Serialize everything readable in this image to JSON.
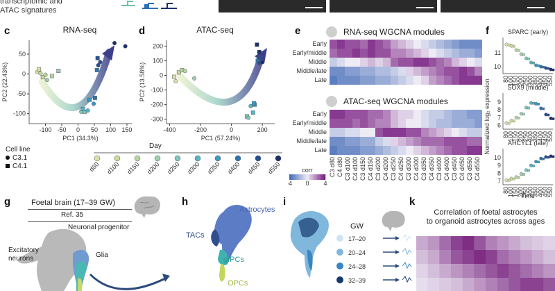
{
  "top": {
    "caption_line": "transcriptomic and",
    "caption_line2": "ATAC signatures"
  },
  "panel_c": {
    "label": "c",
    "title": "RNA-seq",
    "xlabel": "PC1 (34.3%)",
    "ylabel": "PC2 (22.43%)"
  },
  "panel_d": {
    "label": "d",
    "title": "ATAC-seq",
    "xlabel": "PC1 (57.24%)",
    "ylabel": "PC2 (13.58%)"
  },
  "panel_e": {
    "label": "e",
    "title_rna": "RNA-seq WGCNA modules",
    "title_atac": "ATAC-seq WGCNA modules",
    "legend_title": "corr"
  },
  "panel_f": {
    "label": "f",
    "ylabel": "Normalized log₂ expression",
    "xlabel": "Time",
    "sub": [
      "SPARC (early)",
      "SOX9 (middle)",
      "AHCYL1 (late)"
    ]
  },
  "legend": {
    "cell_line_title": "Cell line",
    "cell_lines": [
      "C3.1",
      "C4.1"
    ],
    "day_title": "Day",
    "days": [
      "d80",
      "d100",
      "d150",
      "d200",
      "d250",
      "d300",
      "d350",
      "d400",
      "d450",
      "d550"
    ],
    "day_colors": [
      "#d5e3a8",
      "#c7dc9a",
      "#b7d5a0",
      "#9fcfb0",
      "#7fc7bc",
      "#55b5c6",
      "#3a9ac0",
      "#2d75ae",
      "#244f93",
      "#1a2f6c"
    ]
  },
  "panel_g": {
    "label": "g",
    "title": "Foetal brain (17–39 GW)",
    "ref": "Ref. 35",
    "labels": [
      "Neuronal progenitor",
      "Glia",
      "Excitatory neurons"
    ]
  },
  "panel_h": {
    "label": "h",
    "labels": [
      "Astrocytes",
      "TACs",
      "gIPCs",
      "OPCs"
    ]
  },
  "panel_i": {
    "label": "i",
    "gw_title": "GW",
    "gw": [
      "17–20",
      "20–24",
      "24–28",
      "32–39"
    ],
    "gw_colors": [
      "#cfe3f2",
      "#7fb7dd",
      "#3a86c0",
      "#173a6e"
    ]
  },
  "panel_k": {
    "label": "k",
    "title_line1": "Correlation of foetal astrocytes",
    "title_line2": "to organoid astrocytes across ages"
  },
  "chart_data": [
    {
      "type": "scatter",
      "title": "RNA-seq",
      "xlabel": "PC1 (34.3%)",
      "ylabel": "PC2 (22.43%)",
      "xlim": [
        -150,
        165
      ],
      "ylim": [
        -125,
        85
      ],
      "xticks": [
        -100,
        -50,
        0,
        50,
        100,
        150
      ],
      "yticks": [
        -100,
        -50,
        0,
        50
      ],
      "points": [
        {
          "x": -125,
          "y": 5,
          "day": "d80",
          "line": "C3.1"
        },
        {
          "x": -120,
          "y": 12,
          "day": "d80",
          "line": "C4.1"
        },
        {
          "x": -115,
          "y": 2,
          "day": "d100",
          "line": "C3.1"
        },
        {
          "x": -108,
          "y": -8,
          "day": "d100",
          "line": "C4.1"
        },
        {
          "x": -100,
          "y": -2,
          "day": "d150",
          "line": "C3.1"
        },
        {
          "x": -80,
          "y": -5,
          "day": "d150",
          "line": "C4.1"
        },
        {
          "x": -60,
          "y": 8,
          "day": "d200",
          "line": "C4.1"
        },
        {
          "x": -95,
          "y": -15,
          "day": "d200",
          "line": "C3.1"
        },
        {
          "x": 10,
          "y": -95,
          "day": "d250",
          "line": "C3.1"
        },
        {
          "x": 20,
          "y": -95,
          "day": "d250",
          "line": "C4.1"
        },
        {
          "x": 30,
          "y": -92,
          "day": "d300",
          "line": "C3.1"
        },
        {
          "x": 15,
          "y": -88,
          "day": "d300",
          "line": "C4.1"
        },
        {
          "x": 35,
          "y": -65,
          "day": "d350",
          "line": "C4.1"
        },
        {
          "x": 48,
          "y": -75,
          "day": "d350",
          "line": "C3.1"
        },
        {
          "x": 52,
          "y": -60,
          "day": "d400",
          "line": "C4.1"
        },
        {
          "x": 58,
          "y": 10,
          "day": "d400",
          "line": "C4.1"
        },
        {
          "x": 62,
          "y": 22,
          "day": "d450",
          "line": "C3.1"
        },
        {
          "x": 60,
          "y": 40,
          "day": "d450",
          "line": "C4.1"
        },
        {
          "x": 68,
          "y": 30,
          "day": "d450",
          "line": "C3.1"
        },
        {
          "x": 112,
          "y": 78,
          "day": "d550",
          "line": "C3.1"
        },
        {
          "x": 145,
          "y": 70,
          "day": "d550",
          "line": "C3.1"
        }
      ]
    },
    {
      "type": "scatter",
      "title": "ATAC-seq",
      "xlabel": "PC1 (57.24%)",
      "ylabel": "PC2 (13.58%)",
      "xlim": [
        -420,
        280
      ],
      "ylim": [
        -330,
        240
      ],
      "xticks": [
        -400,
        -200,
        0,
        200
      ],
      "yticks": [
        -300,
        -200,
        -100,
        0,
        100,
        200
      ],
      "points": [
        {
          "x": -370,
          "y": -10,
          "day": "d80",
          "line": "C4.1"
        },
        {
          "x": -360,
          "y": -40,
          "day": "d80",
          "line": "C3.1"
        },
        {
          "x": -340,
          "y": 20,
          "day": "d100",
          "line": "C4.1"
        },
        {
          "x": -320,
          "y": 35,
          "day": "d150",
          "line": "C4.1"
        },
        {
          "x": -300,
          "y": 30,
          "day": "d150",
          "line": "C3.1"
        },
        {
          "x": -240,
          "y": -20,
          "day": "d200",
          "line": "C3.1"
        },
        {
          "x": 100,
          "y": -280,
          "day": "d250",
          "line": "C4.1"
        },
        {
          "x": 110,
          "y": -290,
          "day": "d250",
          "line": "C3.1"
        },
        {
          "x": 140,
          "y": -255,
          "day": "d300",
          "line": "C4.1"
        },
        {
          "x": 125,
          "y": -210,
          "day": "d300",
          "line": "C3.1"
        },
        {
          "x": 150,
          "y": -200,
          "day": "d350",
          "line": "C4.1"
        },
        {
          "x": 145,
          "y": -190,
          "day": "d350",
          "line": "C4.1"
        },
        {
          "x": 170,
          "y": 100,
          "day": "d400",
          "line": "C4.1"
        },
        {
          "x": 180,
          "y": 85,
          "day": "d450",
          "line": "C3.1"
        },
        {
          "x": 185,
          "y": 120,
          "day": "d450",
          "line": "C4.1"
        },
        {
          "x": 165,
          "y": 210,
          "day": "d550",
          "line": "C4.1"
        },
        {
          "x": 180,
          "y": 160,
          "day": "d550",
          "line": "C4.1"
        },
        {
          "x": 200,
          "y": 90,
          "day": "d550",
          "line": "C3.1"
        }
      ]
    },
    {
      "type": "heatmap",
      "title": "RNA-seq WGCNA modules",
      "rows": [
        "Early",
        "Early/middle",
        "Middle",
        "Middle/late",
        "Late"
      ],
      "values": [
        [
          3,
          3.5,
          3,
          3,
          2.5,
          3.5,
          3,
          2.5,
          1.5,
          1,
          0.5,
          0,
          -0.5,
          -1,
          -1.5,
          -2,
          -2.5,
          -3,
          -3,
          -3
        ],
        [
          2.5,
          3,
          3,
          3.5,
          3,
          3.5,
          3,
          3,
          2,
          2,
          1.5,
          1,
          0.5,
          0,
          -0.5,
          -1,
          -1.5,
          -2,
          -2,
          -2.5
        ],
        [
          -1,
          -0.5,
          0,
          0,
          0.5,
          1,
          0.5,
          1,
          2.5,
          3,
          3,
          3.5,
          3.5,
          3,
          2.5,
          2,
          1,
          0.5,
          0,
          -0.5
        ],
        [
          -3,
          -3,
          -2.5,
          -2.5,
          -2,
          -2,
          -1.5,
          -1.5,
          -1,
          -0.5,
          0.5,
          1,
          1.5,
          2,
          2.5,
          3,
          3,
          3.5,
          3,
          2
        ],
        [
          -3.5,
          -3,
          -3,
          -3,
          -2.5,
          -2.5,
          -2,
          -2,
          -1.5,
          -1,
          -0.5,
          0,
          0.5,
          1.5,
          2,
          2.5,
          3,
          3.5,
          3.5,
          3.5
        ]
      ]
    },
    {
      "type": "heatmap",
      "title": "ATAC-seq WGCNA modules",
      "rows": [
        "Early",
        "Early/middle",
        "Middle",
        "Middle/late",
        "Late"
      ],
      "columns": [
        "C3 d80",
        "C4 d80",
        "C3 d100",
        "C4 d100",
        "C3 d150",
        "C4 d150",
        "C3 d200",
        "C4 d200",
        "C3 d250",
        "C4 d250",
        "C3 d300",
        "C4 d300",
        "C3 d350",
        "C4 d350",
        "C3 d400",
        "C4 d400",
        "C3 d450",
        "C4 d450",
        "C3 d550",
        "C4 d550"
      ],
      "values": [
        [
          3.5,
          3.5,
          3,
          3,
          3,
          2.5,
          2.5,
          2,
          1,
          0.5,
          0.5,
          0,
          -0.5,
          -1,
          -1,
          -1.5,
          -2,
          -2,
          -2.5,
          -2.5
        ],
        [
          3,
          3,
          3,
          2.5,
          3,
          2.5,
          2,
          2,
          1,
          0.5,
          0,
          0,
          -0.5,
          -1,
          -1.5,
          -1.5,
          -2,
          -2,
          -2,
          -2.5
        ],
        [
          -1,
          -1,
          -0.5,
          -0.5,
          0,
          0,
          3,
          3.5,
          3.5,
          3.5,
          3,
          3,
          2,
          1.5,
          1,
          0.5,
          0,
          -0.5,
          -1,
          -1
        ],
        [
          -3,
          -3,
          -2.5,
          -2.5,
          -2,
          -2,
          -1,
          -0.5,
          0.5,
          1,
          1.5,
          2,
          2.5,
          2.5,
          2.5,
          3,
          3,
          3,
          2.5,
          2.5
        ],
        [
          -3.5,
          -3,
          -3,
          -3,
          -2.5,
          -2.5,
          -2,
          -1.5,
          -1,
          -0.5,
          0,
          0.5,
          1,
          1.5,
          2,
          2.5,
          3,
          3,
          3.5,
          3.5
        ]
      ],
      "legend_ticks": [
        -4,
        0,
        4
      ],
      "legend_title": "corr"
    },
    {
      "type": "scatter",
      "title": "SPARC (early)",
      "yticks": [
        10,
        11
      ],
      "x_categories": [
        "80",
        "100",
        "150",
        "200",
        "250",
        "300",
        "350",
        "400",
        "450",
        "550"
      ],
      "values": [
        11.6,
        11.5,
        11.2,
        10.9,
        10.6,
        10.3,
        10.1,
        10.0,
        9.9,
        9.8
      ]
    },
    {
      "type": "scatter",
      "title": "SOX9 (middle)",
      "yticks": [
        6,
        7,
        8,
        9
      ],
      "x_categories": [
        "80",
        "100",
        "150",
        "200",
        "250",
        "300",
        "350",
        "400",
        "450",
        "550"
      ],
      "values": [
        6.3,
        6.6,
        7.0,
        7.5,
        8.3,
        8.9,
        8.8,
        8.2,
        7.4,
        6.9
      ]
    },
    {
      "type": "scatter",
      "title": "AHCYL1 (late)",
      "yticks": [
        7,
        8,
        9,
        10
      ],
      "x_categories": [
        "80",
        "100",
        "150",
        "200",
        "250",
        "300",
        "350",
        "400",
        "450",
        "550"
      ],
      "values": [
        7.1,
        7.3,
        7.5,
        7.9,
        8.4,
        9.0,
        9.5,
        9.9,
        10.1,
        10.2
      ]
    },
    {
      "type": "heatmap",
      "title": "Correlation of foetal astrocytes to organoid astrocytes across ages",
      "rows": [
        "17–20",
        "20–24",
        "24–28",
        "32–39"
      ],
      "values": [
        [
          0.3,
          0.4,
          0.6,
          0.8,
          0.9,
          0.7,
          0.5,
          0.4,
          0.3,
          0.2,
          0.15,
          0.1
        ],
        [
          0.2,
          0.3,
          0.5,
          0.7,
          0.8,
          0.9,
          0.8,
          0.6,
          0.5,
          0.4,
          0.3,
          0.2
        ],
        [
          0.1,
          0.2,
          0.3,
          0.4,
          0.5,
          0.6,
          0.7,
          0.8,
          0.7,
          0.6,
          0.5,
          0.4
        ],
        [
          0.05,
          0.1,
          0.15,
          0.2,
          0.3,
          0.4,
          0.5,
          0.6,
          0.7,
          0.8,
          0.8,
          0.7
        ]
      ]
    }
  ]
}
